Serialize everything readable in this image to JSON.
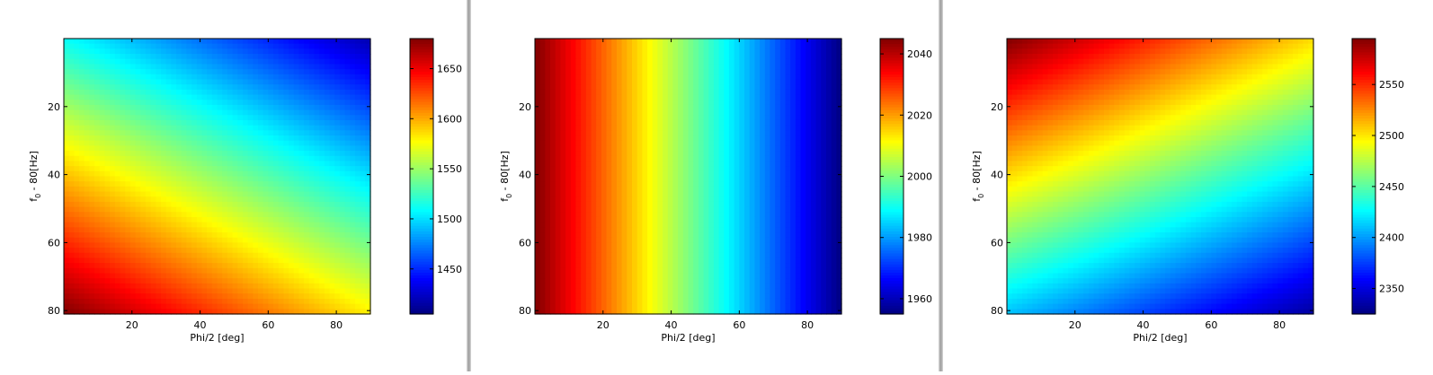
{
  "chart_data": [
    {
      "type": "heatmap",
      "colormap": "jet",
      "xlabel": "Phi/2 [deg]",
      "ylabel": "f_0 - 80[Hz]",
      "ylabel_main": "f",
      "ylabel_sub": "0",
      "ylabel_rest": " - 80[Hz]",
      "xlim": [
        0,
        90
      ],
      "ylim": [
        0,
        81
      ],
      "y_inverted": true,
      "xticks": [
        20,
        40,
        60,
        80
      ],
      "yticks": [
        20,
        40,
        60,
        80
      ],
      "colorbar": {
        "min": 1405,
        "max": 1680,
        "ticks": [
          1450,
          1500,
          1550,
          1600,
          1650
        ]
      },
      "corner_values": {
        "top_left": 1510,
        "top_right": 1405,
        "bottom_left": 1680,
        "bottom_right": 1565
      },
      "pattern": "sigmoid-diagonal"
    },
    {
      "type": "heatmap",
      "colormap": "jet",
      "xlabel": "Phi/2 [deg]",
      "ylabel": "f_0 - 80[Hz]",
      "ylabel_main": "f",
      "ylabel_sub": "0",
      "ylabel_rest": " - 80[Hz]",
      "xlim": [
        0,
        90
      ],
      "ylim": [
        0,
        81
      ],
      "y_inverted": true,
      "xticks": [
        20,
        40,
        60,
        80
      ],
      "yticks": [
        20,
        40,
        60,
        80
      ],
      "colorbar": {
        "min": 1955,
        "max": 2045,
        "ticks": [
          1960,
          1980,
          2000,
          2020,
          2040
        ]
      },
      "corner_values": {
        "top_left": 2045,
        "top_right": 1955,
        "bottom_left": 2045,
        "bottom_right": 1955
      },
      "pattern": "horizontal-only"
    },
    {
      "type": "heatmap",
      "colormap": "jet",
      "xlabel": "Phi/2 [deg]",
      "ylabel": "f_0 - 80[Hz]",
      "ylabel_main": "f",
      "ylabel_sub": "0",
      "ylabel_rest": " - 80[Hz]",
      "xlim": [
        0,
        90
      ],
      "ylim": [
        0,
        81
      ],
      "y_inverted": true,
      "xticks": [
        20,
        40,
        60,
        80
      ],
      "yticks": [
        20,
        40,
        60,
        80
      ],
      "colorbar": {
        "min": 2325,
        "max": 2595,
        "ticks": [
          2350,
          2400,
          2450,
          2500,
          2550
        ]
      },
      "corner_values": {
        "top_left": 2595,
        "top_right": 2490,
        "bottom_left": 2410,
        "bottom_right": 2325
      },
      "pattern": "sigmoid-diagonal"
    }
  ]
}
